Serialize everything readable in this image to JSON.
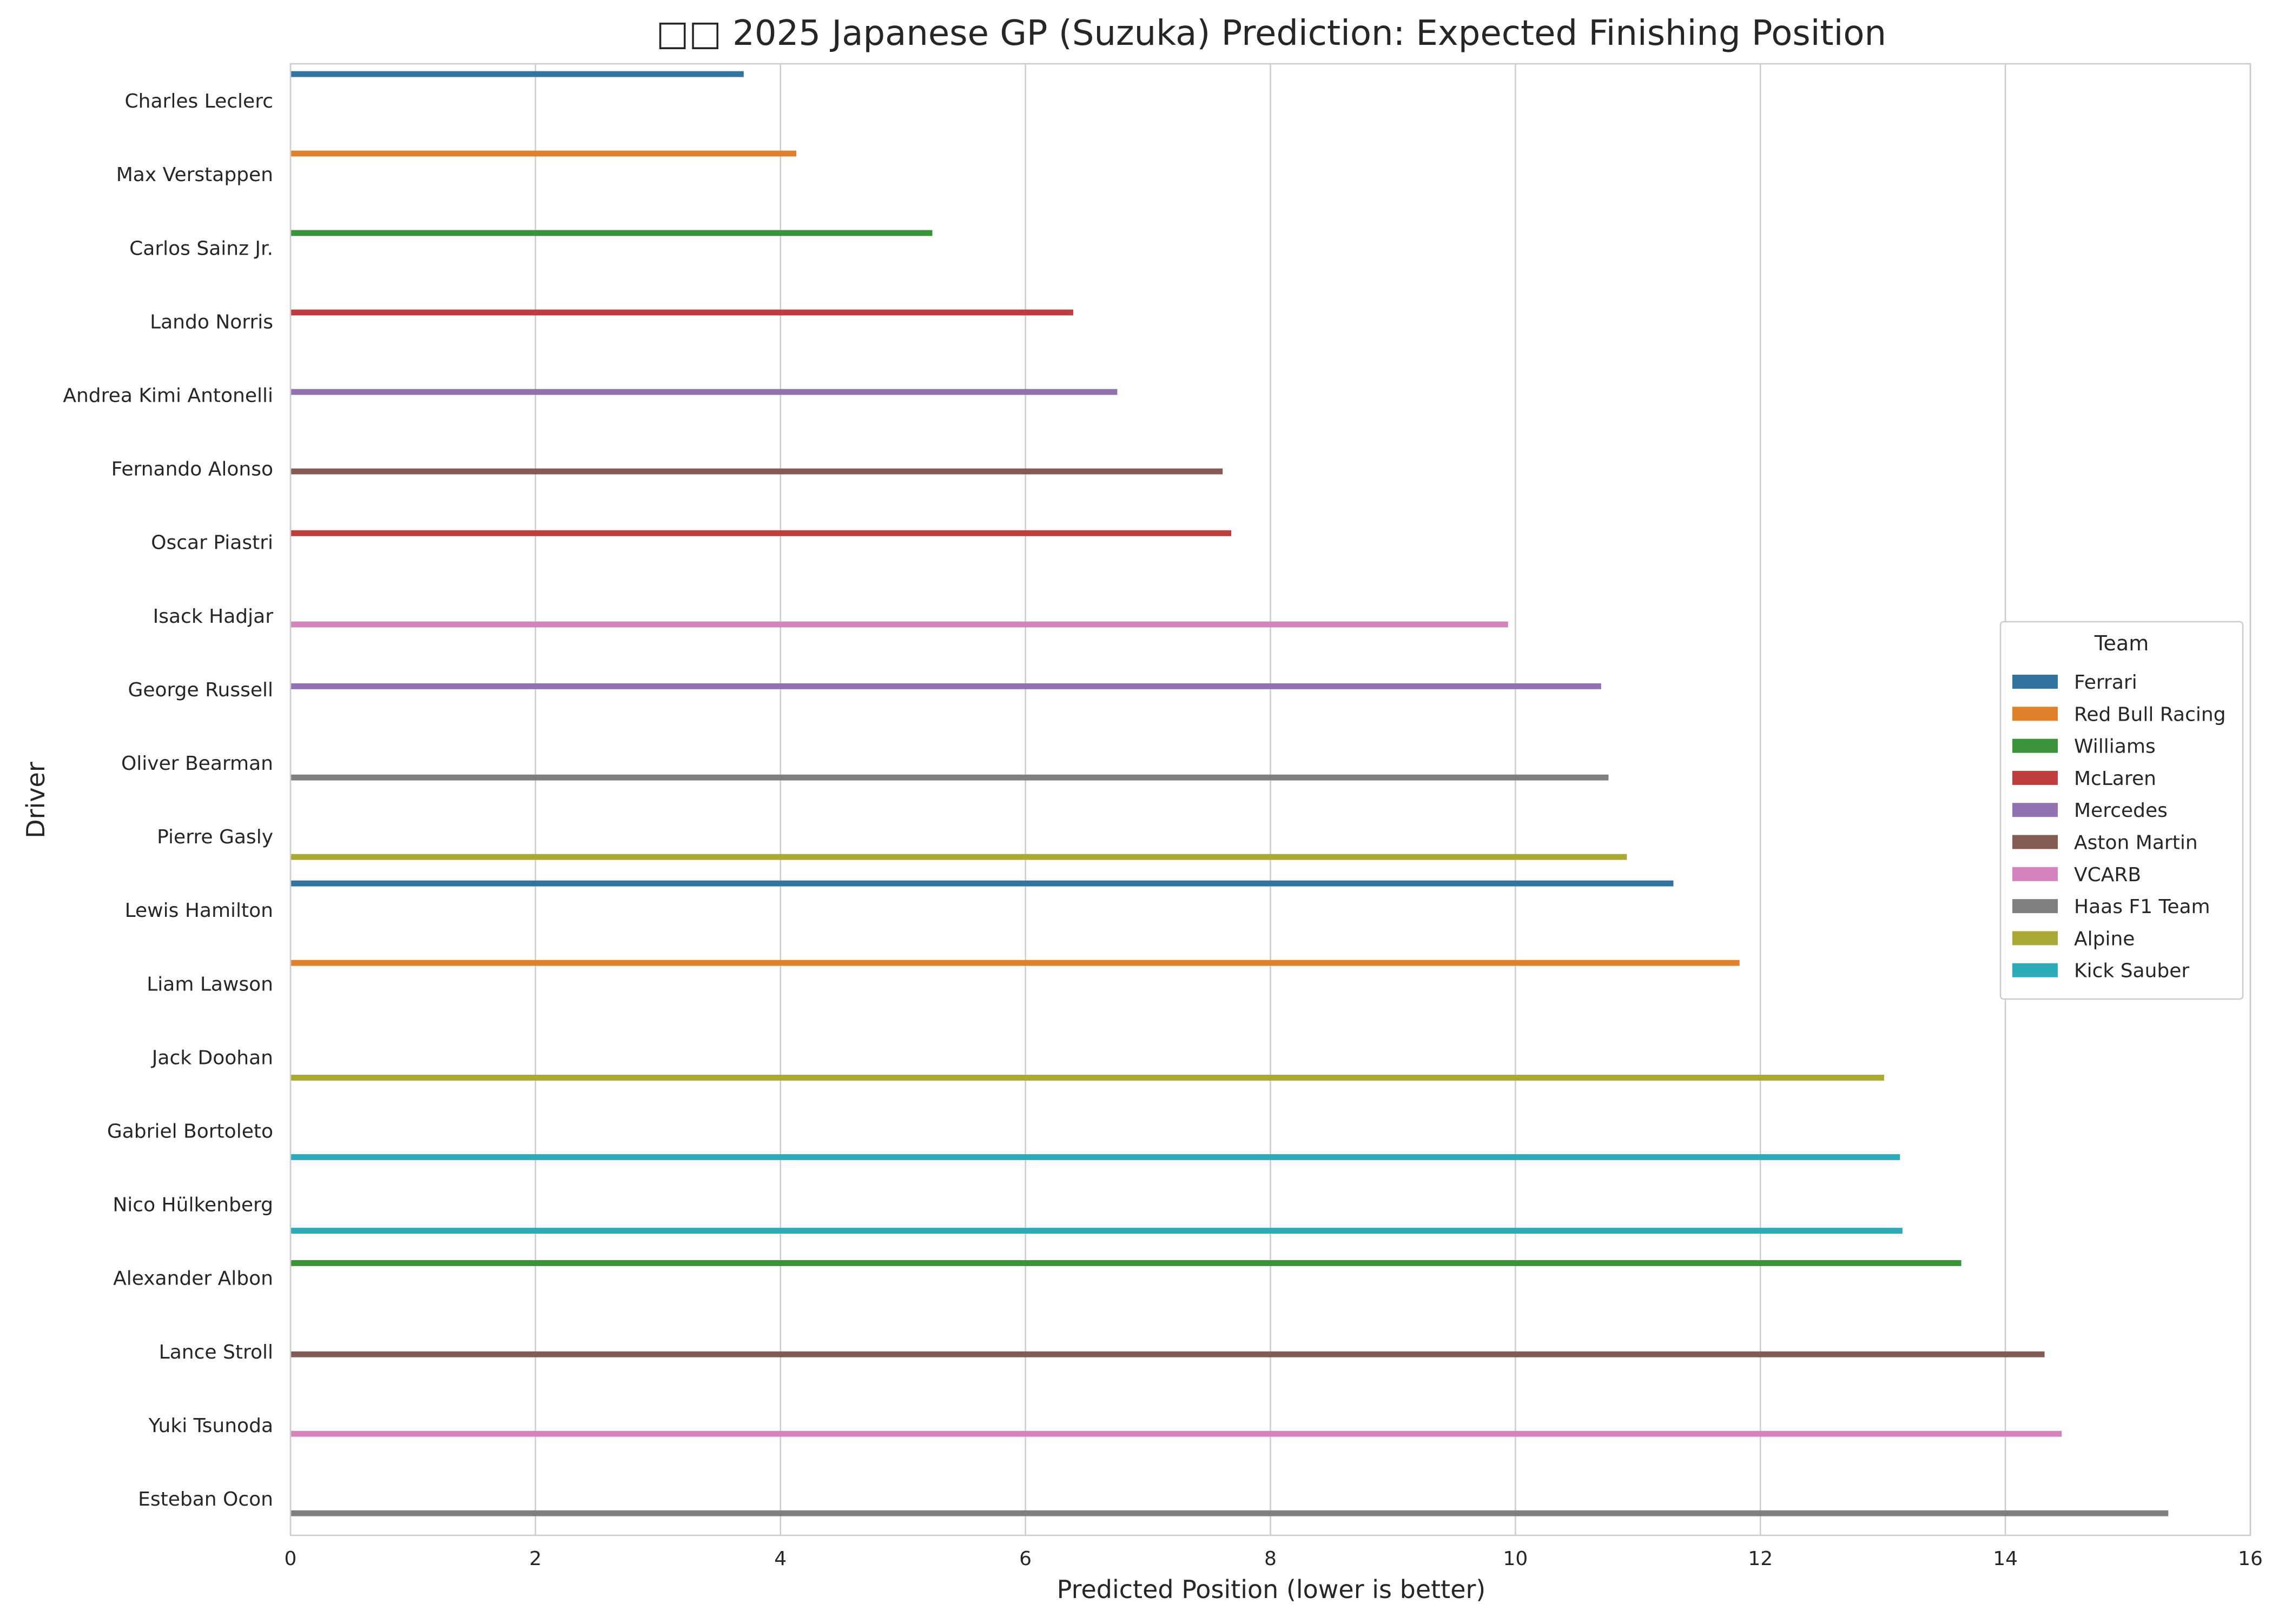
{
  "chart_data": {
    "type": "bar",
    "title": "□□ 2025 Japanese GP (Suzuka) Prediction: Expected Finishing Position",
    "xlabel": "Predicted Position (lower is better)",
    "ylabel": "Driver",
    "xlim": [
      0,
      16
    ],
    "xticks": [
      "0",
      "2",
      "4",
      "6",
      "8",
      "10",
      "12",
      "14",
      "16"
    ],
    "grid": "vertical",
    "legend": {
      "title": "Team",
      "placement": "right"
    },
    "teams": [
      {
        "name": "Ferrari",
        "color": "#3274a1"
      },
      {
        "name": "Red Bull Racing",
        "color": "#e1812c"
      },
      {
        "name": "Williams",
        "color": "#3a923a"
      },
      {
        "name": "McLaren",
        "color": "#c03d3e"
      },
      {
        "name": "Mercedes",
        "color": "#9372b2"
      },
      {
        "name": "Aston Martin",
        "color": "#845b53"
      },
      {
        "name": "VCARB",
        "color": "#d684bd"
      },
      {
        "name": "Haas F1 Team",
        "color": "#7f7f7f"
      },
      {
        "name": "Alpine",
        "color": "#a9aa35"
      },
      {
        "name": "Kick Sauber",
        "color": "#2eabb8"
      }
    ],
    "categories": [
      "Charles Leclerc",
      "Max Verstappen",
      "Carlos Sainz Jr.",
      "Lando Norris",
      "Andrea Kimi Antonelli",
      "Fernando Alonso",
      "Oscar Piastri",
      "Isack Hadjar",
      "George Russell",
      "Oliver Bearman",
      "Pierre Gasly",
      "Lewis Hamilton",
      "Liam Lawson",
      "Jack Doohan",
      "Gabriel Bortoleto",
      "Nico Hülkenberg",
      "Alexander Albon",
      "Lance Stroll",
      "Yuki Tsunoda",
      "Esteban Ocon"
    ],
    "bars": [
      {
        "driver": "Charles Leclerc",
        "team": "Ferrari",
        "value": 3.7
      },
      {
        "driver": "Max Verstappen",
        "team": "Red Bull Racing",
        "value": 4.13
      },
      {
        "driver": "Carlos Sainz Jr.",
        "team": "Williams",
        "value": 5.24
      },
      {
        "driver": "Lando Norris",
        "team": "McLaren",
        "value": 6.39
      },
      {
        "driver": "Andrea Kimi Antonelli",
        "team": "Mercedes",
        "value": 6.75
      },
      {
        "driver": "Fernando Alonso",
        "team": "Aston Martin",
        "value": 7.61
      },
      {
        "driver": "Oscar Piastri",
        "team": "McLaren",
        "value": 7.68
      },
      {
        "driver": "Isack Hadjar",
        "team": "VCARB",
        "value": 9.94
      },
      {
        "driver": "George Russell",
        "team": "Mercedes",
        "value": 10.7
      },
      {
        "driver": "Oliver Bearman",
        "team": "Haas F1 Team",
        "value": 10.76
      },
      {
        "driver": "Pierre Gasly",
        "team": "Alpine",
        "value": 10.91
      },
      {
        "driver": "Lewis Hamilton",
        "team": "Ferrari",
        "value": 11.29
      },
      {
        "driver": "Liam Lawson",
        "team": "Red Bull Racing",
        "value": 11.83
      },
      {
        "driver": "Jack Doohan",
        "team": "Alpine",
        "value": 13.01
      },
      {
        "driver": "Gabriel Bortoleto",
        "team": "Kick Sauber",
        "value": 13.14
      },
      {
        "driver": "Nico Hülkenberg",
        "team": "Kick Sauber",
        "value": 13.16
      },
      {
        "driver": "Alexander Albon",
        "team": "Williams",
        "value": 13.64
      },
      {
        "driver": "Lance Stroll",
        "team": "Aston Martin",
        "value": 14.32
      },
      {
        "driver": "Yuki Tsunoda",
        "team": "VCARB",
        "value": 14.46
      },
      {
        "driver": "Esteban Ocon",
        "team": "Haas F1 Team",
        "value": 15.33
      }
    ]
  }
}
